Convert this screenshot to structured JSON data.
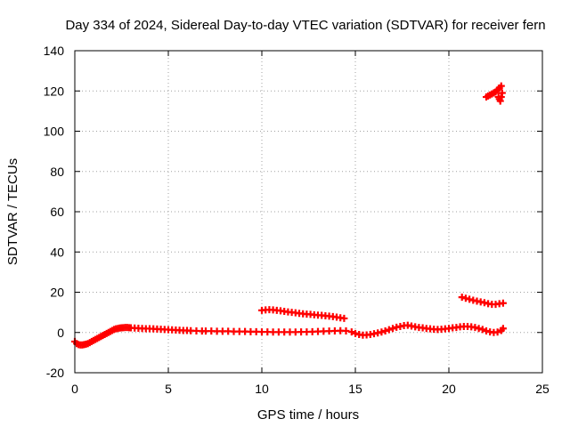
{
  "chart_data": {
    "type": "scatter",
    "title": "Day 334 of 2024, Sidereal Day-to-day VTEC variation (SDTVAR) for receiver fern",
    "xlabel": "GPS time / hours",
    "ylabel": "SDTVAR / TECUs",
    "xlim": [
      0,
      25
    ],
    "ylim": [
      -20,
      140
    ],
    "xticks": [
      "0",
      "5",
      "10",
      "15",
      "20",
      "25"
    ],
    "yticks": [
      "-20",
      "0",
      "20",
      "40",
      "60",
      "80",
      "100",
      "120",
      "140"
    ],
    "grid": true,
    "marker": "plus",
    "series_color": "#ff0000",
    "series": [
      {
        "points": [
          [
            0.0,
            -4.5
          ],
          [
            0.1,
            -5.5
          ],
          [
            0.2,
            -6.0
          ],
          [
            0.3,
            -6.2
          ],
          [
            0.4,
            -6.2
          ],
          [
            0.5,
            -6.0
          ],
          [
            0.6,
            -5.8
          ],
          [
            0.7,
            -5.5
          ],
          [
            0.8,
            -5.0
          ],
          [
            0.9,
            -4.5
          ],
          [
            1.0,
            -4.0
          ],
          [
            1.1,
            -3.5
          ],
          [
            1.2,
            -3.0
          ],
          [
            1.3,
            -2.5
          ],
          [
            1.4,
            -2.0
          ],
          [
            1.5,
            -1.5
          ],
          [
            1.6,
            -1.0
          ],
          [
            1.7,
            -0.5
          ],
          [
            1.8,
            0.0
          ],
          [
            1.9,
            0.5
          ],
          [
            2.0,
            1.0
          ],
          [
            2.1,
            1.5
          ],
          [
            2.2,
            1.8
          ],
          [
            2.3,
            2.0
          ],
          [
            2.4,
            2.2
          ],
          [
            2.5,
            2.3
          ],
          [
            2.6,
            2.4
          ],
          [
            2.7,
            2.5
          ],
          [
            2.8,
            2.5
          ],
          [
            2.9,
            2.4
          ],
          [
            3.0,
            2.3
          ],
          [
            3.2,
            2.2
          ],
          [
            3.4,
            2.1
          ],
          [
            3.6,
            2.0
          ],
          [
            3.8,
            1.9
          ],
          [
            4.0,
            1.9
          ],
          [
            4.2,
            1.8
          ],
          [
            4.4,
            1.7
          ],
          [
            4.6,
            1.6
          ],
          [
            4.8,
            1.5
          ],
          [
            5.0,
            1.4
          ],
          [
            5.2,
            1.3
          ],
          [
            5.4,
            1.2
          ],
          [
            5.6,
            1.1
          ],
          [
            5.8,
            1.0
          ],
          [
            6.0,
            1.0
          ],
          [
            6.2,
            0.9
          ],
          [
            6.5,
            0.8
          ],
          [
            6.8,
            0.7
          ],
          [
            7.0,
            0.7
          ],
          [
            7.3,
            0.7
          ],
          [
            7.6,
            0.6
          ],
          [
            7.9,
            0.6
          ],
          [
            8.2,
            0.6
          ],
          [
            8.5,
            0.5
          ],
          [
            8.8,
            0.5
          ],
          [
            9.1,
            0.5
          ],
          [
            9.4,
            0.4
          ],
          [
            9.7,
            0.4
          ],
          [
            10.0,
            0.3
          ],
          [
            10.3,
            0.3
          ],
          [
            10.6,
            0.2
          ],
          [
            10.9,
            0.2
          ],
          [
            11.2,
            0.2
          ],
          [
            11.5,
            0.2
          ],
          [
            11.8,
            0.2
          ],
          [
            12.1,
            0.3
          ],
          [
            12.4,
            0.3
          ],
          [
            12.7,
            0.4
          ],
          [
            13.0,
            0.5
          ],
          [
            13.3,
            0.6
          ],
          [
            13.6,
            0.7
          ],
          [
            13.9,
            0.8
          ],
          [
            14.2,
            0.9
          ],
          [
            14.5,
            0.8
          ],
          [
            14.8,
            0.3
          ],
          [
            15.0,
            -0.5
          ],
          [
            15.2,
            -1.0
          ],
          [
            15.4,
            -1.3
          ],
          [
            15.6,
            -1.2
          ],
          [
            15.8,
            -1.0
          ],
          [
            16.0,
            -0.6
          ],
          [
            16.2,
            -0.2
          ],
          [
            16.4,
            0.2
          ],
          [
            16.6,
            0.8
          ],
          [
            16.8,
            1.4
          ],
          [
            17.0,
            2.0
          ],
          [
            17.2,
            2.6
          ],
          [
            17.4,
            3.0
          ],
          [
            17.6,
            3.4
          ],
          [
            17.8,
            3.6
          ],
          [
            18.0,
            3.2
          ],
          [
            18.2,
            2.8
          ],
          [
            18.4,
            2.5
          ],
          [
            18.6,
            2.3
          ],
          [
            18.8,
            2.0
          ],
          [
            19.0,
            1.8
          ],
          [
            19.2,
            1.6
          ],
          [
            19.4,
            1.5
          ],
          [
            19.6,
            1.6
          ],
          [
            19.8,
            1.8
          ],
          [
            20.0,
            2.0
          ],
          [
            20.2,
            2.3
          ],
          [
            20.4,
            2.5
          ],
          [
            20.6,
            2.8
          ],
          [
            20.8,
            3.0
          ],
          [
            21.0,
            3.0
          ],
          [
            21.2,
            2.8
          ],
          [
            21.4,
            2.5
          ],
          [
            21.6,
            2.0
          ],
          [
            21.8,
            1.5
          ],
          [
            22.0,
            0.8
          ],
          [
            22.2,
            0.3
          ],
          [
            22.4,
            0.0
          ],
          [
            22.6,
            0.2
          ],
          [
            22.8,
            1.0
          ],
          [
            22.9,
            2.0
          ]
        ]
      },
      {
        "points": [
          [
            10.0,
            11.0
          ],
          [
            10.2,
            11.2
          ],
          [
            10.4,
            11.3
          ],
          [
            10.6,
            11.2
          ],
          [
            10.8,
            11.0
          ],
          [
            11.0,
            10.8
          ],
          [
            11.2,
            10.5
          ],
          [
            11.4,
            10.2
          ],
          [
            11.6,
            10.0
          ],
          [
            11.8,
            9.8
          ],
          [
            12.0,
            9.5
          ],
          [
            12.2,
            9.3
          ],
          [
            12.4,
            9.1
          ],
          [
            12.6,
            9.0
          ],
          [
            12.8,
            8.8
          ],
          [
            13.0,
            8.6
          ],
          [
            13.2,
            8.5
          ],
          [
            13.4,
            8.3
          ],
          [
            13.6,
            8.1
          ],
          [
            13.8,
            7.9
          ],
          [
            14.0,
            7.6
          ],
          [
            14.2,
            7.3
          ],
          [
            14.4,
            7.0
          ]
        ]
      },
      {
        "points": [
          [
            20.7,
            17.5
          ],
          [
            20.9,
            17.0
          ],
          [
            21.1,
            16.5
          ],
          [
            21.3,
            16.0
          ],
          [
            21.5,
            15.6
          ],
          [
            21.7,
            15.2
          ],
          [
            21.9,
            14.8
          ],
          [
            22.1,
            14.3
          ],
          [
            22.3,
            14.0
          ],
          [
            22.5,
            14.0
          ],
          [
            22.7,
            14.3
          ],
          [
            22.9,
            14.6
          ]
        ]
      },
      {
        "points": [
          [
            22.0,
            117.0
          ],
          [
            22.1,
            117.5
          ],
          [
            22.2,
            118.0
          ],
          [
            22.3,
            118.5
          ],
          [
            22.4,
            119.0
          ],
          [
            22.5,
            119.5
          ],
          [
            22.6,
            120.5
          ],
          [
            22.7,
            121.5
          ],
          [
            22.8,
            122.5
          ],
          [
            22.65,
            117.0
          ],
          [
            22.7,
            116.0
          ],
          [
            22.75,
            115.0
          ],
          [
            22.8,
            117.0
          ],
          [
            22.85,
            119.0
          ]
        ]
      }
    ]
  }
}
